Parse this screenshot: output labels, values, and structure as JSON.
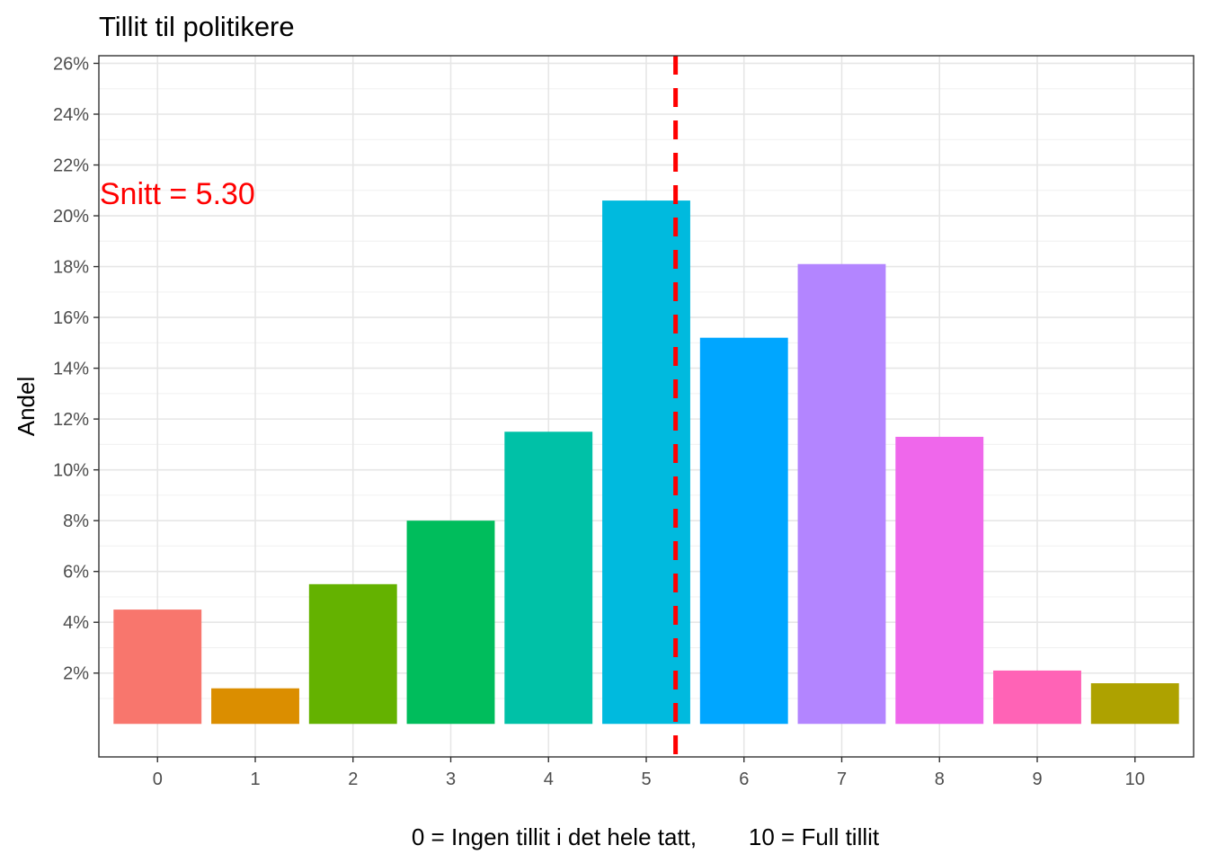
{
  "chart_data": {
    "type": "bar",
    "title": "Tillit til politikere",
    "xlabel": "0 = Ingen tillit i det hele tatt,        10 = Full tillit",
    "ylabel": "Andel",
    "categories": [
      "0",
      "1",
      "2",
      "3",
      "4",
      "5",
      "6",
      "7",
      "8",
      "9",
      "10"
    ],
    "values": [
      4.5,
      1.4,
      5.5,
      8.0,
      11.5,
      20.6,
      15.2,
      18.1,
      11.3,
      2.1,
      1.6
    ],
    "colors": [
      "#F8766D",
      "#DB8E00",
      "#64B200",
      "#00BD5C",
      "#00C1A7",
      "#00BADE",
      "#00A6FF",
      "#B385FF",
      "#EF67EB",
      "#FF63B6",
      "#AEA200"
    ],
    "ylim": [
      -1.3,
      26.3
    ],
    "yticks": [
      2,
      4,
      6,
      8,
      10,
      12,
      14,
      16,
      18,
      20,
      22,
      24,
      26
    ],
    "ytick_labels": [
      "2%",
      "4%",
      "6%",
      "8%",
      "10%",
      "12%",
      "14%",
      "16%",
      "18%",
      "20%",
      "22%",
      "24%",
      "26%"
    ],
    "mean": 5.3,
    "mean_line_color": "#FF0000",
    "annotation": {
      "text": "Snitt = 5.30",
      "color": "#FF0000",
      "x": -0.5,
      "y": 20.6
    },
    "grid": true
  }
}
